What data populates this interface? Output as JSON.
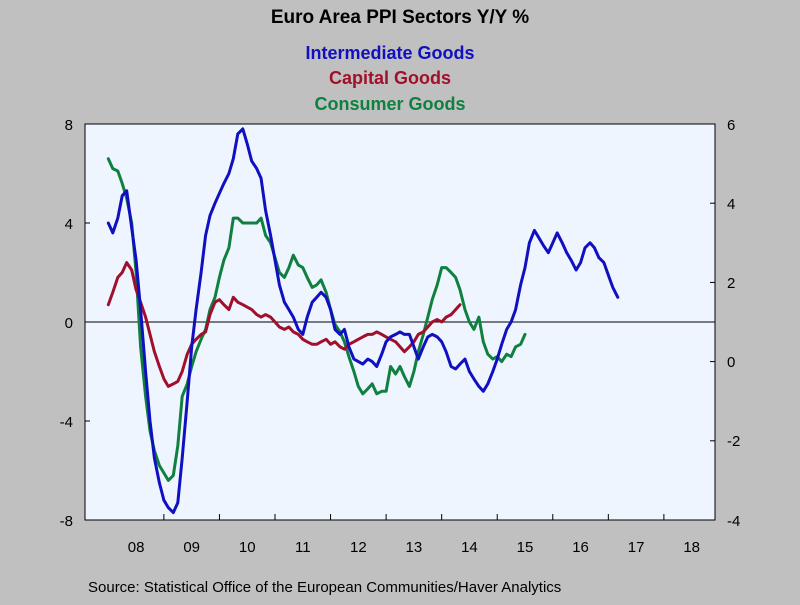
{
  "chart_data": {
    "type": "line",
    "title": "Euro Area PPI Sectors Y/Y %",
    "source": "Source:  Statistical Office of the European Communities/Haver Analytics",
    "x_labels": [
      "08",
      "09",
      "10",
      "11",
      "12",
      "13",
      "14",
      "15",
      "16",
      "17",
      "18"
    ],
    "left_axis": {
      "ylim": [
        -8,
        8
      ],
      "ticks": [
        "-8",
        "-4",
        "0",
        "4",
        "8"
      ]
    },
    "right_axis": {
      "ylim": [
        -4,
        6
      ],
      "ticks": [
        "-4",
        "-2",
        "0",
        "2",
        "4",
        "6"
      ]
    },
    "zero_line": true,
    "plot_background": "#eef5ff",
    "series": [
      {
        "name": "Intermediate Goods",
        "color": "#1010c0",
        "axis": "left",
        "points": [
          [
            2008.0,
            4.0
          ],
          [
            2008.08,
            3.6
          ],
          [
            2008.17,
            4.2
          ],
          [
            2008.25,
            5.1
          ],
          [
            2008.33,
            5.3
          ],
          [
            2008.42,
            3.8
          ],
          [
            2008.5,
            2.5
          ],
          [
            2008.58,
            0.5
          ],
          [
            2008.67,
            -2.0
          ],
          [
            2008.75,
            -4.0
          ],
          [
            2008.83,
            -5.5
          ],
          [
            2008.92,
            -6.5
          ],
          [
            2009.0,
            -7.2
          ],
          [
            2009.08,
            -7.5
          ],
          [
            2009.17,
            -7.7
          ],
          [
            2009.25,
            -7.3
          ],
          [
            2009.33,
            -5.5
          ],
          [
            2009.42,
            -3.2
          ],
          [
            2009.5,
            -1.0
          ],
          [
            2009.58,
            0.5
          ],
          [
            2009.67,
            2.0
          ],
          [
            2009.75,
            3.5
          ],
          [
            2009.83,
            4.3
          ],
          [
            2009.92,
            4.8
          ],
          [
            2010.0,
            5.2
          ],
          [
            2010.08,
            5.6
          ],
          [
            2010.17,
            6.0
          ],
          [
            2010.25,
            6.6
          ],
          [
            2010.33,
            7.6
          ],
          [
            2010.42,
            7.8
          ],
          [
            2010.5,
            7.2
          ],
          [
            2010.58,
            6.5
          ],
          [
            2010.67,
            6.2
          ],
          [
            2010.75,
            5.8
          ],
          [
            2010.83,
            4.5
          ],
          [
            2010.92,
            3.5
          ],
          [
            2011.0,
            2.5
          ],
          [
            2011.08,
            1.5
          ],
          [
            2011.17,
            0.8
          ],
          [
            2011.25,
            0.5
          ],
          [
            2011.33,
            0.2
          ],
          [
            2011.42,
            -0.3
          ],
          [
            2011.5,
            -0.5
          ],
          [
            2011.58,
            0.2
          ],
          [
            2011.67,
            0.8
          ],
          [
            2011.75,
            1.0
          ],
          [
            2011.83,
            1.2
          ],
          [
            2011.92,
            1.0
          ],
          [
            2012.0,
            0.5
          ],
          [
            2012.08,
            -0.3
          ],
          [
            2012.17,
            -0.5
          ],
          [
            2012.25,
            -0.3
          ],
          [
            2012.33,
            -1.0
          ],
          [
            2012.42,
            -1.5
          ],
          [
            2012.5,
            -1.6
          ],
          [
            2012.58,
            -1.7
          ],
          [
            2012.67,
            -1.5
          ],
          [
            2012.75,
            -1.6
          ],
          [
            2012.83,
            -1.8
          ],
          [
            2012.92,
            -1.3
          ],
          [
            2013.0,
            -0.8
          ],
          [
            2013.08,
            -0.6
          ],
          [
            2013.17,
            -0.5
          ],
          [
            2013.25,
            -0.4
          ],
          [
            2013.33,
            -0.5
          ],
          [
            2013.42,
            -0.5
          ],
          [
            2013.5,
            -1.0
          ],
          [
            2013.58,
            -1.5
          ],
          [
            2013.67,
            -1.0
          ],
          [
            2013.75,
            -0.6
          ],
          [
            2013.83,
            -0.5
          ],
          [
            2013.92,
            -0.6
          ],
          [
            2014.0,
            -0.8
          ],
          [
            2014.08,
            -1.2
          ],
          [
            2014.17,
            -1.8
          ],
          [
            2014.25,
            -1.9
          ],
          [
            2014.33,
            -1.7
          ],
          [
            2014.42,
            -1.5
          ],
          [
            2014.5,
            -2.0
          ],
          [
            2014.58,
            -2.3
          ],
          [
            2014.67,
            -2.6
          ],
          [
            2014.75,
            -2.8
          ],
          [
            2014.83,
            -2.5
          ],
          [
            2014.92,
            -2.0
          ],
          [
            2015.0,
            -1.5
          ],
          [
            2015.08,
            -0.9
          ],
          [
            2015.17,
            -0.3
          ],
          [
            2015.25,
            0.0
          ],
          [
            2015.33,
            0.5
          ],
          [
            2015.42,
            1.5
          ],
          [
            2015.5,
            2.2
          ],
          [
            2015.58,
            3.2
          ],
          [
            2015.67,
            3.7
          ],
          [
            2015.75,
            3.4
          ],
          [
            2015.83,
            3.1
          ],
          [
            2015.92,
            2.8
          ],
          [
            2016.0,
            3.2
          ],
          [
            2016.08,
            3.6
          ],
          [
            2016.17,
            3.2
          ],
          [
            2016.25,
            2.8
          ],
          [
            2016.33,
            2.5
          ],
          [
            2016.42,
            2.1
          ],
          [
            2016.5,
            2.4
          ],
          [
            2016.58,
            3.0
          ],
          [
            2016.67,
            3.2
          ],
          [
            2016.75,
            3.0
          ],
          [
            2016.83,
            2.6
          ],
          [
            2016.92,
            2.4
          ],
          [
            2017.0,
            1.9
          ],
          [
            2017.08,
            1.4
          ],
          [
            2017.17,
            1.0
          ]
        ]
      },
      {
        "name": "Capital Goods",
        "color": "#a0102a",
        "axis": "left",
        "points": [
          [
            2008.0,
            0.7
          ],
          [
            2008.08,
            1.2
          ],
          [
            2008.17,
            1.8
          ],
          [
            2008.25,
            2.0
          ],
          [
            2008.33,
            2.4
          ],
          [
            2008.42,
            2.1
          ],
          [
            2008.5,
            1.3
          ],
          [
            2008.58,
            0.8
          ],
          [
            2008.67,
            0.2
          ],
          [
            2008.75,
            -0.5
          ],
          [
            2008.83,
            -1.2
          ],
          [
            2008.92,
            -1.8
          ],
          [
            2009.0,
            -2.3
          ],
          [
            2009.08,
            -2.6
          ],
          [
            2009.17,
            -2.5
          ],
          [
            2009.25,
            -2.4
          ],
          [
            2009.33,
            -2.0
          ],
          [
            2009.42,
            -1.3
          ],
          [
            2009.5,
            -0.9
          ],
          [
            2009.58,
            -0.7
          ],
          [
            2009.67,
            -0.5
          ],
          [
            2009.75,
            -0.4
          ],
          [
            2009.83,
            0.3
          ],
          [
            2009.92,
            0.8
          ],
          [
            2010.0,
            0.9
          ],
          [
            2010.08,
            0.7
          ],
          [
            2010.17,
            0.5
          ],
          [
            2010.25,
            1.0
          ],
          [
            2010.33,
            0.8
          ],
          [
            2010.42,
            0.7
          ],
          [
            2010.5,
            0.6
          ],
          [
            2010.58,
            0.5
          ],
          [
            2010.67,
            0.3
          ],
          [
            2010.75,
            0.2
          ],
          [
            2010.83,
            0.3
          ],
          [
            2010.92,
            0.2
          ],
          [
            2011.0,
            0.0
          ],
          [
            2011.08,
            -0.2
          ],
          [
            2011.17,
            -0.3
          ],
          [
            2011.25,
            -0.2
          ],
          [
            2011.33,
            -0.4
          ],
          [
            2011.42,
            -0.5
          ],
          [
            2011.5,
            -0.7
          ],
          [
            2011.58,
            -0.8
          ],
          [
            2011.67,
            -0.9
          ],
          [
            2011.75,
            -0.9
          ],
          [
            2011.83,
            -0.8
          ],
          [
            2011.92,
            -0.7
          ],
          [
            2012.0,
            -0.9
          ],
          [
            2012.08,
            -0.8
          ],
          [
            2012.17,
            -1.0
          ],
          [
            2012.25,
            -1.1
          ],
          [
            2012.33,
            -0.9
          ],
          [
            2012.42,
            -0.8
          ],
          [
            2012.5,
            -0.7
          ],
          [
            2012.58,
            -0.6
          ],
          [
            2012.67,
            -0.5
          ],
          [
            2012.75,
            -0.5
          ],
          [
            2012.83,
            -0.4
          ],
          [
            2012.92,
            -0.5
          ],
          [
            2013.0,
            -0.6
          ],
          [
            2013.08,
            -0.7
          ],
          [
            2013.17,
            -0.8
          ],
          [
            2013.25,
            -1.0
          ],
          [
            2013.33,
            -1.2
          ],
          [
            2013.42,
            -1.0
          ],
          [
            2013.5,
            -0.8
          ],
          [
            2013.58,
            -0.5
          ],
          [
            2013.67,
            -0.4
          ],
          [
            2013.75,
            -0.2
          ],
          [
            2013.83,
            0.0
          ],
          [
            2013.92,
            0.1
          ],
          [
            2014.0,
            0.0
          ],
          [
            2014.08,
            0.2
          ],
          [
            2014.17,
            0.3
          ],
          [
            2014.25,
            0.5
          ],
          [
            2014.33,
            0.7
          ]
        ]
      },
      {
        "name": "Consumer Goods",
        "color": "#108040",
        "axis": "left",
        "points": [
          [
            2008.0,
            6.6
          ],
          [
            2008.08,
            6.2
          ],
          [
            2008.17,
            6.1
          ],
          [
            2008.25,
            5.6
          ],
          [
            2008.33,
            5.0
          ],
          [
            2008.42,
            4.0
          ],
          [
            2008.5,
            2.0
          ],
          [
            2008.58,
            -1.0
          ],
          [
            2008.67,
            -3.0
          ],
          [
            2008.75,
            -4.4
          ],
          [
            2008.83,
            -5.2
          ],
          [
            2008.92,
            -5.8
          ],
          [
            2009.0,
            -6.1
          ],
          [
            2009.08,
            -6.4
          ],
          [
            2009.17,
            -6.2
          ],
          [
            2009.25,
            -5.0
          ],
          [
            2009.33,
            -3.0
          ],
          [
            2009.42,
            -2.5
          ],
          [
            2009.5,
            -1.8
          ],
          [
            2009.58,
            -1.2
          ],
          [
            2009.67,
            -0.7
          ],
          [
            2009.75,
            -0.3
          ],
          [
            2009.83,
            0.5
          ],
          [
            2009.92,
            1.0
          ],
          [
            2010.0,
            1.8
          ],
          [
            2010.08,
            2.5
          ],
          [
            2010.17,
            3.0
          ],
          [
            2010.25,
            4.2
          ],
          [
            2010.33,
            4.2
          ],
          [
            2010.42,
            4.0
          ],
          [
            2010.5,
            4.0
          ],
          [
            2010.58,
            4.0
          ],
          [
            2010.67,
            4.0
          ],
          [
            2010.75,
            4.2
          ],
          [
            2010.83,
            3.5
          ],
          [
            2010.92,
            3.2
          ],
          [
            2011.0,
            2.6
          ],
          [
            2011.08,
            2.0
          ],
          [
            2011.17,
            1.8
          ],
          [
            2011.25,
            2.2
          ],
          [
            2011.33,
            2.7
          ],
          [
            2011.42,
            2.3
          ],
          [
            2011.5,
            2.2
          ],
          [
            2011.58,
            1.8
          ],
          [
            2011.67,
            1.4
          ],
          [
            2011.75,
            1.5
          ],
          [
            2011.83,
            1.7
          ],
          [
            2011.92,
            1.2
          ],
          [
            2012.0,
            0.5
          ],
          [
            2012.08,
            -0.1
          ],
          [
            2012.17,
            -0.4
          ],
          [
            2012.25,
            -0.8
          ],
          [
            2012.33,
            -1.4
          ],
          [
            2012.42,
            -2.0
          ],
          [
            2012.5,
            -2.6
          ],
          [
            2012.58,
            -2.9
          ],
          [
            2012.67,
            -2.7
          ],
          [
            2012.75,
            -2.5
          ],
          [
            2012.83,
            -2.9
          ],
          [
            2012.92,
            -2.8
          ],
          [
            2013.0,
            -2.8
          ],
          [
            2013.08,
            -1.8
          ],
          [
            2013.17,
            -2.1
          ],
          [
            2013.25,
            -1.8
          ],
          [
            2013.33,
            -2.2
          ],
          [
            2013.42,
            -2.6
          ],
          [
            2013.5,
            -2.0
          ],
          [
            2013.58,
            -1.2
          ],
          [
            2013.67,
            -0.5
          ],
          [
            2013.75,
            0.2
          ],
          [
            2013.83,
            0.9
          ],
          [
            2013.92,
            1.5
          ],
          [
            2014.0,
            2.2
          ],
          [
            2014.08,
            2.2
          ],
          [
            2014.17,
            2.0
          ],
          [
            2014.25,
            1.8
          ],
          [
            2014.33,
            1.3
          ],
          [
            2014.42,
            0.5
          ],
          [
            2014.5,
            0.0
          ],
          [
            2014.58,
            -0.3
          ],
          [
            2014.67,
            0.2
          ],
          [
            2014.75,
            -0.8
          ],
          [
            2014.83,
            -1.3
          ],
          [
            2014.92,
            -1.5
          ],
          [
            2015.0,
            -1.4
          ],
          [
            2015.08,
            -1.6
          ],
          [
            2015.17,
            -1.3
          ],
          [
            2015.25,
            -1.4
          ],
          [
            2015.33,
            -1.0
          ],
          [
            2015.42,
            -0.9
          ],
          [
            2015.5,
            -0.5
          ]
        ]
      }
    ]
  }
}
